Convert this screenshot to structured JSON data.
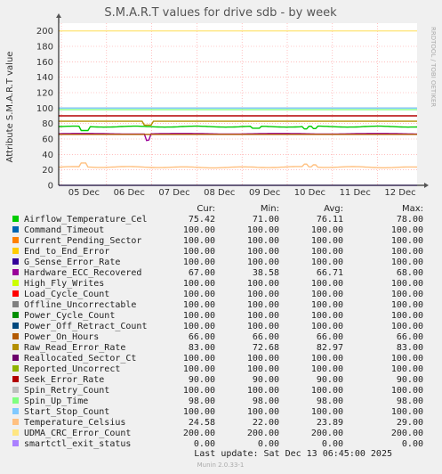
{
  "chart_data": {
    "type": "line",
    "title": "S.M.A.R.T values for drive sdb - by week",
    "ylabel": "Attribute S.M.A.R.T value",
    "side_label": "RRDTOOL / TOBI OETIKER",
    "ylim": [
      0,
      210
    ],
    "yticks": [
      0,
      20,
      40,
      60,
      80,
      100,
      120,
      140,
      160,
      180,
      200
    ],
    "xticks": [
      "05 Dec",
      "06 Dec",
      "07 Dec",
      "08 Dec",
      "09 Dec",
      "10 Dec",
      "11 Dec",
      "12 Dec"
    ],
    "grid": true,
    "columns": [
      "Cur:",
      "Min:",
      "Avg:",
      "Max:"
    ],
    "series": [
      {
        "name": "Airflow_Temperature_Cel",
        "color": "#00cc00",
        "cur": "75.42",
        "min": "71.00",
        "avg": "76.11",
        "max": "78.00"
      },
      {
        "name": "Command_Timeout",
        "color": "#0066b3",
        "cur": "100.00",
        "min": "100.00",
        "avg": "100.00",
        "max": "100.00"
      },
      {
        "name": "Current_Pending_Sector",
        "color": "#ff8000",
        "cur": "100.00",
        "min": "100.00",
        "avg": "100.00",
        "max": "100.00"
      },
      {
        "name": "End_to_End_Error",
        "color": "#ffcc00",
        "cur": "100.00",
        "min": "100.00",
        "avg": "100.00",
        "max": "100.00"
      },
      {
        "name": "G_Sense_Error_Rate",
        "color": "#330099",
        "cur": "100.00",
        "min": "100.00",
        "avg": "100.00",
        "max": "100.00"
      },
      {
        "name": "Hardware_ECC_Recovered",
        "color": "#990099",
        "cur": "67.00",
        "min": "38.58",
        "avg": "66.71",
        "max": "68.00"
      },
      {
        "name": "High_Fly_Writes",
        "color": "#ccff00",
        "cur": "100.00",
        "min": "100.00",
        "avg": "100.00",
        "max": "100.00"
      },
      {
        "name": "Load_Cycle_Count",
        "color": "#ff0000",
        "cur": "100.00",
        "min": "100.00",
        "avg": "100.00",
        "max": "100.00"
      },
      {
        "name": "Offline_Uncorrectable",
        "color": "#808080",
        "cur": "100.00",
        "min": "100.00",
        "avg": "100.00",
        "max": "100.00"
      },
      {
        "name": "Power_Cycle_Count",
        "color": "#008f00",
        "cur": "100.00",
        "min": "100.00",
        "avg": "100.00",
        "max": "100.00"
      },
      {
        "name": "Power_Off_Retract_Count",
        "color": "#00487d",
        "cur": "100.00",
        "min": "100.00",
        "avg": "100.00",
        "max": "100.00"
      },
      {
        "name": "Power_On_Hours",
        "color": "#b35a00",
        "cur": "66.00",
        "min": "66.00",
        "avg": "66.00",
        "max": "66.00"
      },
      {
        "name": "Raw_Read_Error_Rate",
        "color": "#b38f00",
        "cur": "83.00",
        "min": "72.68",
        "avg": "82.97",
        "max": "83.00"
      },
      {
        "name": "Reallocated_Sector_Ct",
        "color": "#6b006b",
        "cur": "100.00",
        "min": "100.00",
        "avg": "100.00",
        "max": "100.00"
      },
      {
        "name": "Reported_Uncorrect",
        "color": "#8fb300",
        "cur": "100.00",
        "min": "100.00",
        "avg": "100.00",
        "max": "100.00"
      },
      {
        "name": "Seek_Error_Rate",
        "color": "#b30000",
        "cur": "90.00",
        "min": "90.00",
        "avg": "90.00",
        "max": "90.00"
      },
      {
        "name": "Spin_Retry_Count",
        "color": "#bebebe",
        "cur": "100.00",
        "min": "100.00",
        "avg": "100.00",
        "max": "100.00"
      },
      {
        "name": "Spin_Up_Time",
        "color": "#80ff80",
        "cur": "98.00",
        "min": "98.00",
        "avg": "98.00",
        "max": "98.00"
      },
      {
        "name": "Start_Stop_Count",
        "color": "#80c9ff",
        "cur": "100.00",
        "min": "100.00",
        "avg": "100.00",
        "max": "100.00"
      },
      {
        "name": "Temperature_Celsius",
        "color": "#ffc080",
        "cur": "24.58",
        "min": "22.00",
        "avg": "23.89",
        "max": "29.00"
      },
      {
        "name": "UDMA_CRC_Error_Count",
        "color": "#ffe680",
        "cur": "200.00",
        "min": "200.00",
        "avg": "200.00",
        "max": "200.00"
      },
      {
        "name": "smartctl_exit_status",
        "color": "#aa80ff",
        "cur": "0.00",
        "min": "0.00",
        "avg": "0.00",
        "max": "0.00"
      }
    ],
    "last_update": "Last update:  Sat Dec 13 06:45:00 2025",
    "footer": "Munin 2.0.33-1"
  }
}
